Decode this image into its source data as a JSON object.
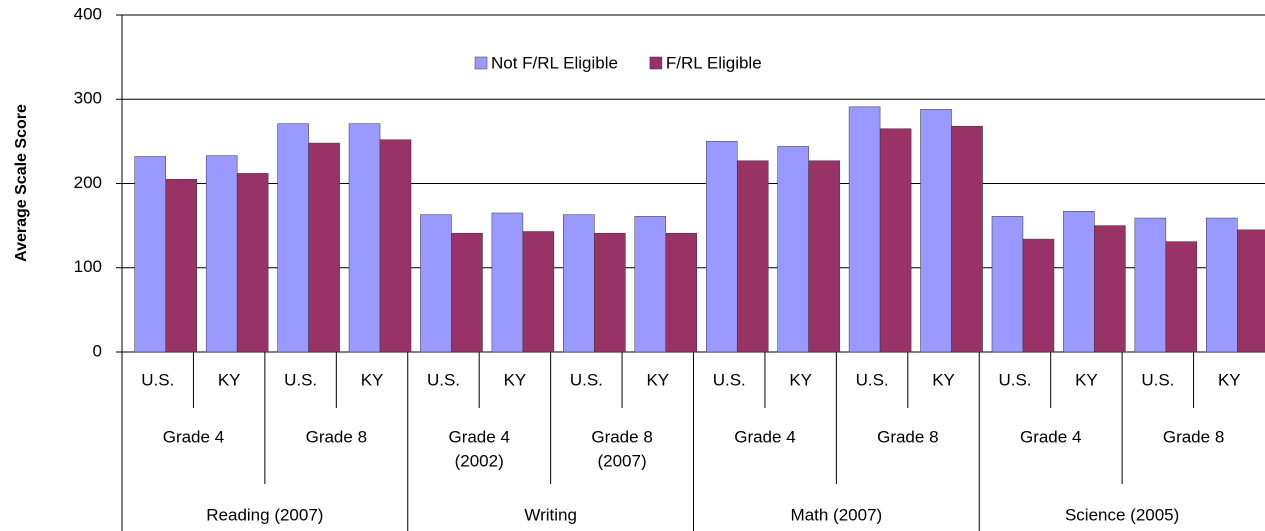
{
  "chart_data": {
    "type": "bar",
    "y_label": "Average Scale Score",
    "categories": [
      "U.S.",
      "KY",
      "U.S.",
      "KY",
      "U.S.",
      "KY",
      "U.S.",
      "KY",
      "U.S.",
      "KY",
      "U.S.",
      "KY",
      "U.S.",
      "KY",
      "U.S.",
      "KY"
    ],
    "groups": [
      [
        "Grade 4"
      ],
      [
        "Grade 8"
      ],
      [
        "Grade 4",
        "(2002)"
      ],
      [
        "Grade 8",
        "(2007)"
      ],
      [
        "Grade 4"
      ],
      [
        "Grade 8"
      ],
      [
        "Grade 4"
      ],
      [
        "Grade 8"
      ]
    ],
    "subjects": [
      "Reading (2007)",
      "Writing",
      "Math (2007)",
      "Science (2005)"
    ],
    "series": [
      {
        "name": "Not F/RL Eligible",
        "color": "#9999ff",
        "values": [
          232,
          233,
          271,
          271,
          163,
          165,
          163,
          161,
          250,
          244,
          291,
          288,
          161,
          167,
          159,
          159
        ]
      },
      {
        "name": "F/RL Eligible",
        "color": "#993366",
        "values": [
          205,
          212,
          248,
          252,
          141,
          143,
          141,
          141,
          227,
          227,
          265,
          268,
          134,
          150,
          131,
          145
        ]
      }
    ],
    "ylim": [
      0,
      400
    ],
    "yticks": [
      0,
      100,
      200,
      300,
      400
    ],
    "grid": true,
    "legend": "top"
  }
}
